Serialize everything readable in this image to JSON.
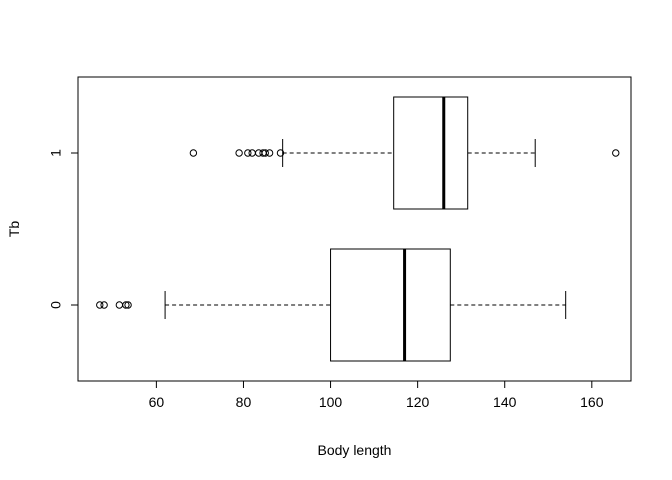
{
  "chart_data": {
    "type": "boxplot",
    "orientation": "horizontal",
    "xlabel": "Body length",
    "ylabel": "Tb",
    "xlim": [
      42,
      169
    ],
    "xticks": [
      60,
      80,
      100,
      120,
      140,
      160
    ],
    "grid": false,
    "groups": [
      {
        "category": "0",
        "whisker_low": 62,
        "q1": 100,
        "median": 117,
        "q3": 127.5,
        "whisker_high": 154,
        "outliers": [
          47,
          48,
          51.5,
          53,
          53.5
        ]
      },
      {
        "category": "1",
        "whisker_low": 89,
        "q1": 114.5,
        "median": 126,
        "q3": 131.5,
        "whisker_high": 147,
        "outliers": [
          68.5,
          79,
          81,
          82,
          83.5,
          84.5,
          85,
          86,
          88.5,
          165.5
        ]
      }
    ]
  }
}
